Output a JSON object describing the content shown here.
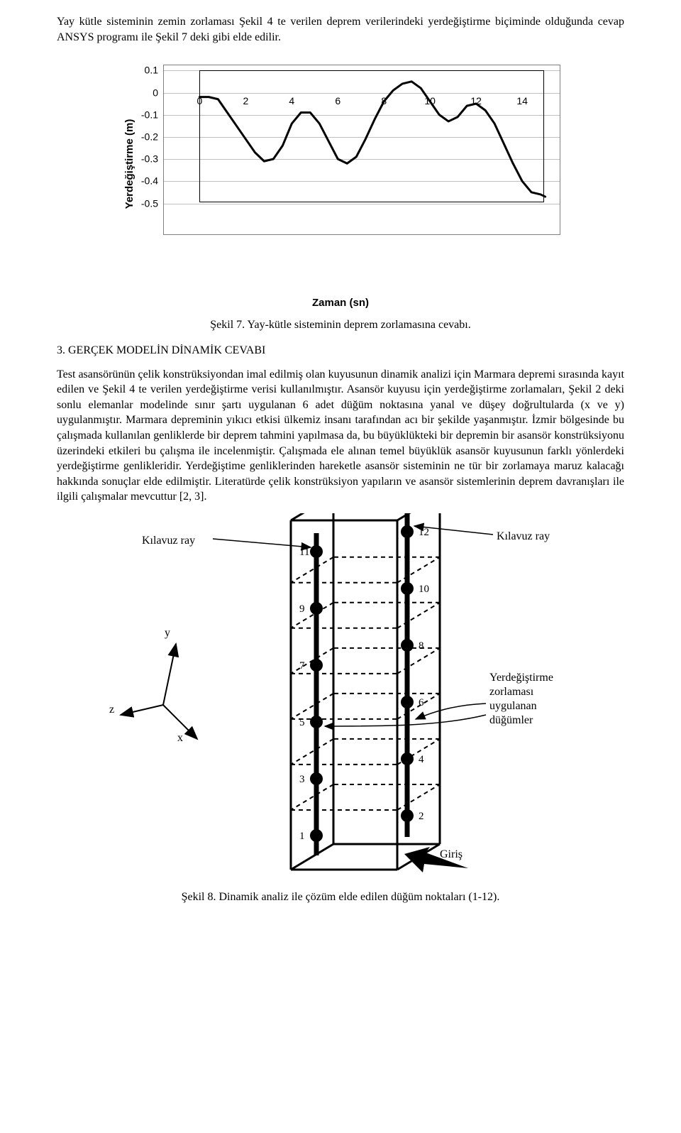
{
  "intro_para": "Yay kütle sisteminin zemin zorlaması Şekil 4 te verilen deprem verilerindeki yerdeğiştirme biçiminde olduğunda cevap ANSYS programı ile Şekil 7 deki gibi elde edilir.",
  "chart": {
    "type": "line",
    "y_label": "Yerdeğiştirme (m)",
    "x_label": "Zaman (sn)",
    "y_ticks": [
      "0.1",
      "0",
      "-0.1",
      "-0.2",
      "-0.3",
      "-0.4",
      "-0.5"
    ],
    "y_tick_values": [
      0.1,
      0,
      -0.1,
      -0.2,
      -0.3,
      -0.4,
      -0.5
    ],
    "x_ticks": [
      "0",
      "2",
      "4",
      "6",
      "8",
      "10",
      "12",
      "14"
    ],
    "x_tick_values": [
      0,
      2,
      4,
      6,
      8,
      10,
      12,
      14
    ],
    "xlim": [
      0,
      15
    ],
    "ylim": [
      -0.5,
      0.1
    ],
    "series": [
      {
        "x": 0.0,
        "y": -0.02
      },
      {
        "x": 0.4,
        "y": -0.02
      },
      {
        "x": 0.8,
        "y": -0.03
      },
      {
        "x": 1.2,
        "y": -0.09
      },
      {
        "x": 1.6,
        "y": -0.15
      },
      {
        "x": 2.0,
        "y": -0.21
      },
      {
        "x": 2.4,
        "y": -0.27
      },
      {
        "x": 2.8,
        "y": -0.31
      },
      {
        "x": 3.2,
        "y": -0.3
      },
      {
        "x": 3.6,
        "y": -0.24
      },
      {
        "x": 4.0,
        "y": -0.14
      },
      {
        "x": 4.4,
        "y": -0.09
      },
      {
        "x": 4.8,
        "y": -0.09
      },
      {
        "x": 5.2,
        "y": -0.14
      },
      {
        "x": 5.6,
        "y": -0.22
      },
      {
        "x": 6.0,
        "y": -0.3
      },
      {
        "x": 6.4,
        "y": -0.32
      },
      {
        "x": 6.8,
        "y": -0.29
      },
      {
        "x": 7.2,
        "y": -0.21
      },
      {
        "x": 7.6,
        "y": -0.12
      },
      {
        "x": 8.0,
        "y": -0.04
      },
      {
        "x": 8.4,
        "y": 0.01
      },
      {
        "x": 8.8,
        "y": 0.04
      },
      {
        "x": 9.2,
        "y": 0.05
      },
      {
        "x": 9.6,
        "y": 0.02
      },
      {
        "x": 10.0,
        "y": -0.04
      },
      {
        "x": 10.4,
        "y": -0.1
      },
      {
        "x": 10.8,
        "y": -0.13
      },
      {
        "x": 11.2,
        "y": -0.11
      },
      {
        "x": 11.6,
        "y": -0.06
      },
      {
        "x": 12.0,
        "y": -0.05
      },
      {
        "x": 12.4,
        "y": -0.08
      },
      {
        "x": 12.8,
        "y": -0.14
      },
      {
        "x": 13.2,
        "y": -0.23
      },
      {
        "x": 13.6,
        "y": -0.32
      },
      {
        "x": 14.0,
        "y": -0.4
      },
      {
        "x": 14.4,
        "y": -0.45
      },
      {
        "x": 14.8,
        "y": -0.46
      },
      {
        "x": 15.0,
        "y": -0.47
      }
    ],
    "line_color": "#000000",
    "line_width": 3,
    "background_color": "#ffffff",
    "grid_color": "#c0c0c0",
    "border_color": "#808080",
    "inner_box_color": "#000000",
    "font_family": "Arial",
    "label_fontsize": 15,
    "tick_fontsize": 14
  },
  "caption7": "Şekil 7. Yay-kütle sisteminin deprem zorlamasına cevabı.",
  "section_heading": "3. GERÇEK MODELİN DİNAMİK CEVABI",
  "body_para": "Test asansörünün çelik konstrüksiyondan imal edilmiş olan kuyusunun dinamik analizi için Marmara depremi sırasında kayıt edilen ve Şekil 4 te verilen yerdeğiştirme verisi kullanılmıştır. Asansör kuyusu için yerdeğiştirme zorlamaları, Şekil 2 deki sonlu elemanlar modelinde sınır şartı uygulanan 6 adet düğüm noktasına yanal ve düşey doğrultularda (x ve y) uygulanmıştır. Marmara depreminin yıkıcı etkisi ülkemiz insanı tarafından acı bir şekilde yaşanmıştır. İzmir bölgesinde bu çalışmada kullanılan genliklerde bir deprem tahmini yapılmasa da, bu büyüklükteki bir depremin bir asansör konstrüksiyonu üzerindeki etkileri bu çalışma ile incelenmiştir. Çalışmada ele alınan temel büyüklük asansör kuyusunun farklı yönlerdeki yerdeğiştirme genlikleridir. Yerdeğiştime genliklerinden hareketle asansör sisteminin ne tür bir zorlamaya maruz kalacağı hakkında sonuçlar elde edilmiştir. Literatürde çelik konstrüksiyon yapıların ve asansör sistemlerinin deprem davranışları ile ilgili çalışmalar mevcuttur [2, 3].",
  "diagram": {
    "labels": {
      "kilavuz_left": "Kılavuz ray",
      "kilavuz_right": "Kılavuz ray",
      "displacement_label": "Yerdeğiştirme\nzorlaması\nuygulanan\ndüğümler",
      "giris": "Giriş",
      "axes": {
        "x": "x",
        "y": "y",
        "z": "z"
      }
    },
    "nodes": [
      "1",
      "2",
      "3",
      "4",
      "5",
      "6",
      "7",
      "8",
      "9",
      "10",
      "11",
      "12"
    ],
    "structure_color": "#000000",
    "rail_color": "#000000",
    "dash_color": "#000000",
    "node_radius": 9,
    "dash_pattern": "6 5"
  },
  "caption8": "Şekil 8. Dinamik analiz ile çözüm elde edilen düğüm noktaları (1-12)."
}
